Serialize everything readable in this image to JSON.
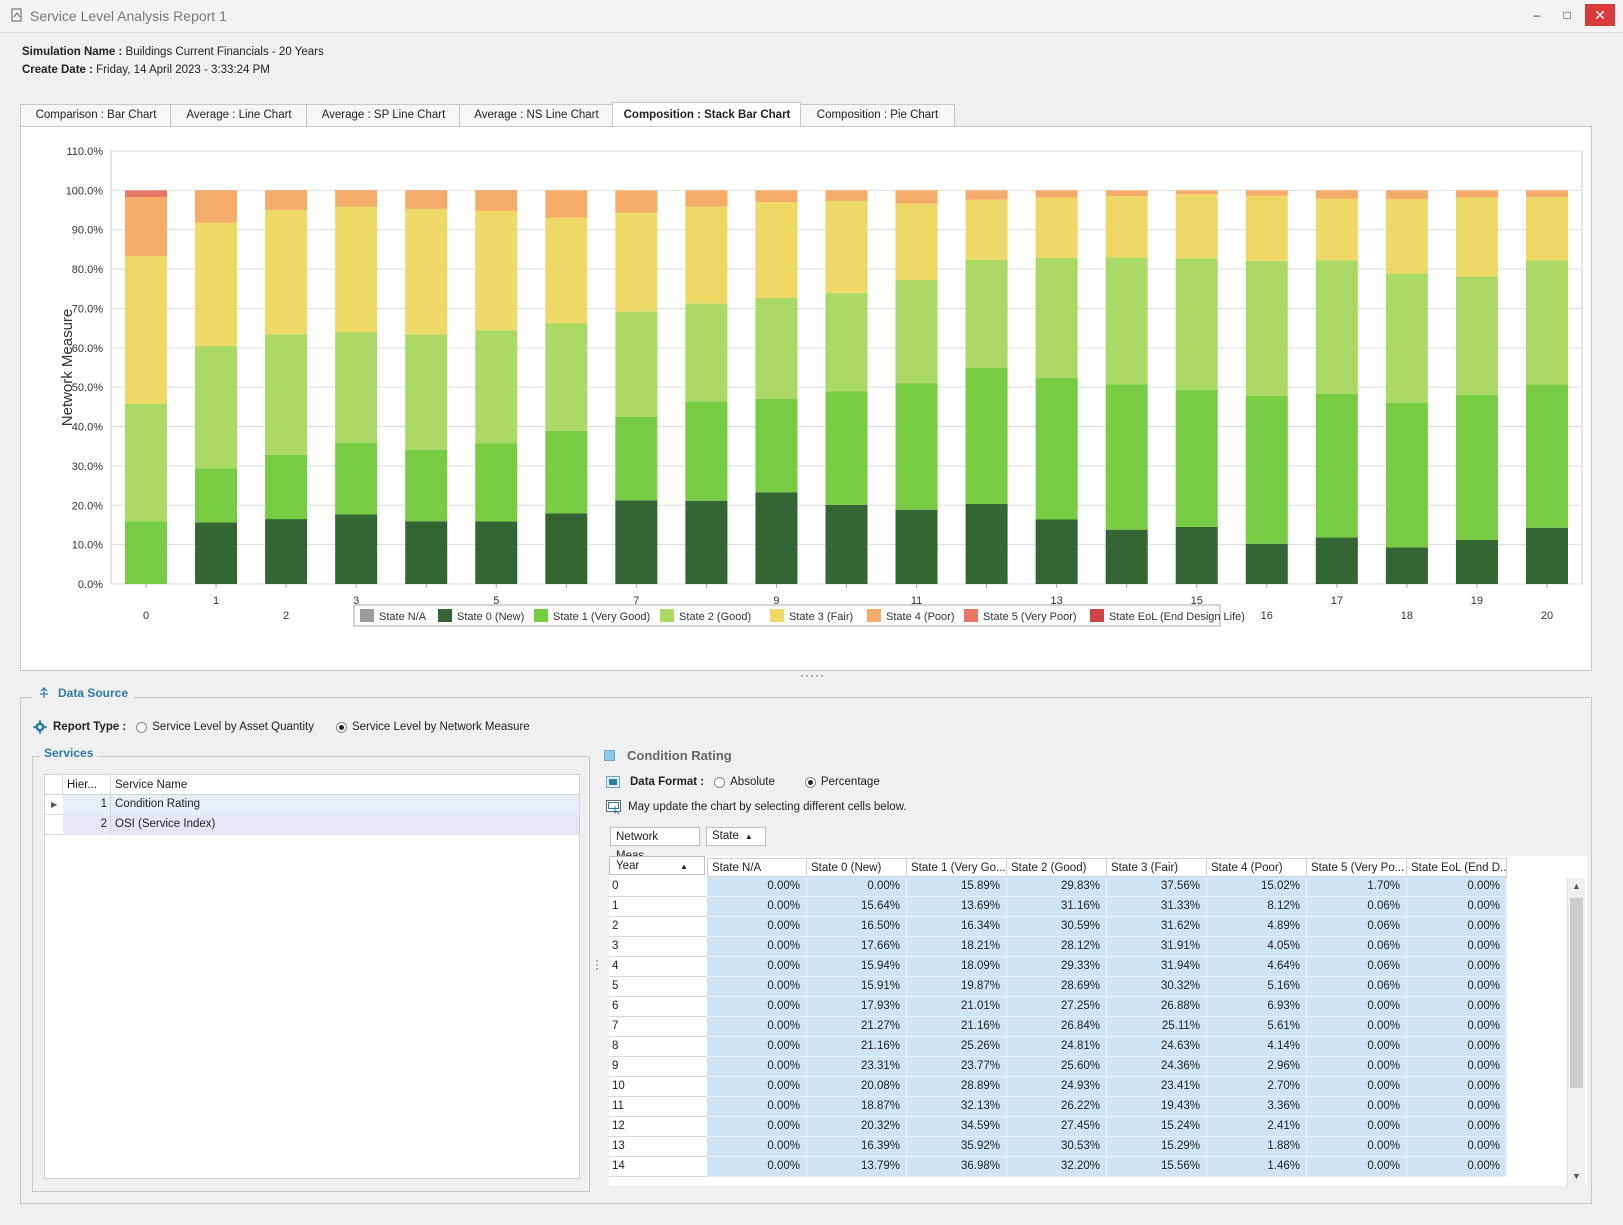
{
  "window": {
    "title": "Service Level Analysis Report 1",
    "minimize": "–",
    "maximize": "□",
    "close": "✕"
  },
  "info": {
    "sim_label": "Simulation Name :",
    "sim_value": "Buildings Current Financials - 20 Years",
    "date_label": "Create Date :",
    "date_value": "Friday, 14 April 2023 - 3:33:24 PM"
  },
  "tabs": [
    {
      "label": "Comparison : Bar Chart"
    },
    {
      "label": "Average : Line Chart"
    },
    {
      "label": "Average : SP Line Chart"
    },
    {
      "label": "Average : NS Line Chart"
    },
    {
      "label": "Composition : Stack Bar Chart",
      "active": true
    },
    {
      "label": "Composition : Pie Chart"
    }
  ],
  "chart_data": {
    "type": "bar",
    "stacked": true,
    "ylabel": "Network Measure",
    "ylim": [
      0,
      110
    ],
    "yticks": [
      "0.0%",
      "10.0%",
      "20.0%",
      "30.0%",
      "40.0%",
      "50.0%",
      "60.0%",
      "70.0%",
      "80.0%",
      "90.0%",
      "100.0%",
      "110.0%"
    ],
    "categories": [
      "0",
      "1",
      "2",
      "3",
      "4",
      "5",
      "6",
      "7",
      "8",
      "9",
      "10",
      "11",
      "12",
      "13",
      "14",
      "15",
      "16",
      "17",
      "18",
      "19",
      "20"
    ],
    "legend_position": "bottom",
    "grid": true,
    "series": [
      {
        "name": "State N/A",
        "color": "#9b9b9b",
        "values": [
          0,
          0,
          0,
          0,
          0,
          0,
          0,
          0,
          0,
          0,
          0,
          0,
          0,
          0,
          0,
          0,
          0,
          0,
          0,
          0,
          0
        ]
      },
      {
        "name": "State 0 (New)",
        "color": "#336633",
        "values": [
          0,
          15.64,
          16.5,
          17.66,
          15.94,
          15.91,
          17.93,
          21.27,
          21.16,
          23.31,
          20.08,
          18.87,
          20.32,
          16.39,
          13.79,
          14.5,
          10.2,
          11.8,
          9.3,
          11.2,
          14.3
        ]
      },
      {
        "name": "State 1 (Very Good)",
        "color": "#77cc44",
        "values": [
          15.89,
          13.69,
          16.34,
          18.21,
          18.09,
          19.87,
          21.01,
          21.16,
          25.26,
          23.77,
          28.89,
          32.13,
          34.59,
          35.92,
          36.98,
          34.8,
          37.6,
          36.5,
          36.7,
          36.8,
          36.4
        ]
      },
      {
        "name": "State 2 (Good)",
        "color": "#aad966",
        "values": [
          29.83,
          31.16,
          30.59,
          28.12,
          29.33,
          28.69,
          27.25,
          26.84,
          24.81,
          25.6,
          24.93,
          26.22,
          27.45,
          30.53,
          32.2,
          33.4,
          34.3,
          33.9,
          32.9,
          30.1,
          31.5
        ]
      },
      {
        "name": "State 3 (Fair)",
        "color": "#eed866",
        "values": [
          37.56,
          31.33,
          31.62,
          31.91,
          31.94,
          30.32,
          26.88,
          25.11,
          24.63,
          24.36,
          23.41,
          19.43,
          15.24,
          15.29,
          15.56,
          16.3,
          16.5,
          15.7,
          18.9,
          20.1,
          16.1
        ]
      },
      {
        "name": "State 4 (Poor)",
        "color": "#f5ac6a",
        "values": [
          15.02,
          8.12,
          4.89,
          4.05,
          4.64,
          5.16,
          6.93,
          5.61,
          4.14,
          2.96,
          2.7,
          3.36,
          2.41,
          1.88,
          1.46,
          1.0,
          1.4,
          2.1,
          2.2,
          1.8,
          1.7
        ]
      },
      {
        "name": "State 5 (Very Poor)",
        "color": "#e77766",
        "values": [
          1.7,
          0.06,
          0.06,
          0.06,
          0.06,
          0.06,
          0,
          0,
          0,
          0,
          0,
          0,
          0,
          0,
          0,
          0,
          0,
          0,
          0,
          0,
          0
        ]
      },
      {
        "name": "State EoL (End Design Life)",
        "color": "#cc4444",
        "values": [
          0,
          0,
          0,
          0,
          0,
          0,
          0,
          0,
          0,
          0,
          0,
          0,
          0,
          0,
          0,
          0,
          0,
          0,
          0,
          0,
          0
        ]
      }
    ]
  },
  "data_source": {
    "title": "Data Source",
    "report_type_label": "Report Type :",
    "options": [
      "Service Level by Asset Quantity",
      "Service Level by Network Measure"
    ],
    "selected": 1
  },
  "services": {
    "title": "Services",
    "col_hier": "Hier...",
    "col_name": "Service Name",
    "rows": [
      {
        "id": "1",
        "name": "Condition Rating"
      },
      {
        "id": "2",
        "name": "OSI (Service Index)"
      }
    ]
  },
  "condition": {
    "title": "Condition Rating",
    "format_label": "Data Format :",
    "format_options": [
      "Absolute",
      "Percentage"
    ],
    "format_selected": 1,
    "hint": "May update the chart by selecting different cells below.",
    "pill_measure": "Network Meas...",
    "pill_state": "State",
    "year_header": "Year",
    "columns": [
      "State N/A",
      "State 0 (New)",
      "State 1 (Very Go...",
      "State 2 (Good)",
      "State 3 (Fair)",
      "State 4 (Poor)",
      "State 5 (Very Po...",
      "State EoL (End D..."
    ],
    "rows": [
      {
        "year": "0",
        "cells": [
          "0.00%",
          "0.00%",
          "15.89%",
          "29.83%",
          "37.56%",
          "15.02%",
          "1.70%",
          "0.00%"
        ]
      },
      {
        "year": "1",
        "cells": [
          "0.00%",
          "15.64%",
          "13.69%",
          "31.16%",
          "31.33%",
          "8.12%",
          "0.06%",
          "0.00%"
        ]
      },
      {
        "year": "2",
        "cells": [
          "0.00%",
          "16.50%",
          "16.34%",
          "30.59%",
          "31.62%",
          "4.89%",
          "0.06%",
          "0.00%"
        ]
      },
      {
        "year": "3",
        "cells": [
          "0.00%",
          "17.66%",
          "18.21%",
          "28.12%",
          "31.91%",
          "4.05%",
          "0.06%",
          "0.00%"
        ]
      },
      {
        "year": "4",
        "cells": [
          "0.00%",
          "15.94%",
          "18.09%",
          "29.33%",
          "31.94%",
          "4.64%",
          "0.06%",
          "0.00%"
        ]
      },
      {
        "year": "5",
        "cells": [
          "0.00%",
          "15.91%",
          "19.87%",
          "28.69%",
          "30.32%",
          "5.16%",
          "0.06%",
          "0.00%"
        ]
      },
      {
        "year": "6",
        "cells": [
          "0.00%",
          "17.93%",
          "21.01%",
          "27.25%",
          "26.88%",
          "6.93%",
          "0.00%",
          "0.00%"
        ]
      },
      {
        "year": "7",
        "cells": [
          "0.00%",
          "21.27%",
          "21.16%",
          "26.84%",
          "25.11%",
          "5.61%",
          "0.00%",
          "0.00%"
        ]
      },
      {
        "year": "8",
        "cells": [
          "0.00%",
          "21.16%",
          "25.26%",
          "24.81%",
          "24.63%",
          "4.14%",
          "0.00%",
          "0.00%"
        ]
      },
      {
        "year": "9",
        "cells": [
          "0.00%",
          "23.31%",
          "23.77%",
          "25.60%",
          "24.36%",
          "2.96%",
          "0.00%",
          "0.00%"
        ]
      },
      {
        "year": "10",
        "cells": [
          "0.00%",
          "20.08%",
          "28.89%",
          "24.93%",
          "23.41%",
          "2.70%",
          "0.00%",
          "0.00%"
        ]
      },
      {
        "year": "11",
        "cells": [
          "0.00%",
          "18.87%",
          "32.13%",
          "26.22%",
          "19.43%",
          "3.36%",
          "0.00%",
          "0.00%"
        ]
      },
      {
        "year": "12",
        "cells": [
          "0.00%",
          "20.32%",
          "34.59%",
          "27.45%",
          "15.24%",
          "2.41%",
          "0.00%",
          "0.00%"
        ]
      },
      {
        "year": "13",
        "cells": [
          "0.00%",
          "16.39%",
          "35.92%",
          "30.53%",
          "15.29%",
          "1.88%",
          "0.00%",
          "0.00%"
        ]
      },
      {
        "year": "14",
        "cells": [
          "0.00%",
          "13.79%",
          "36.98%",
          "32.20%",
          "15.56%",
          "1.46%",
          "0.00%",
          "0.00%"
        ]
      }
    ]
  }
}
